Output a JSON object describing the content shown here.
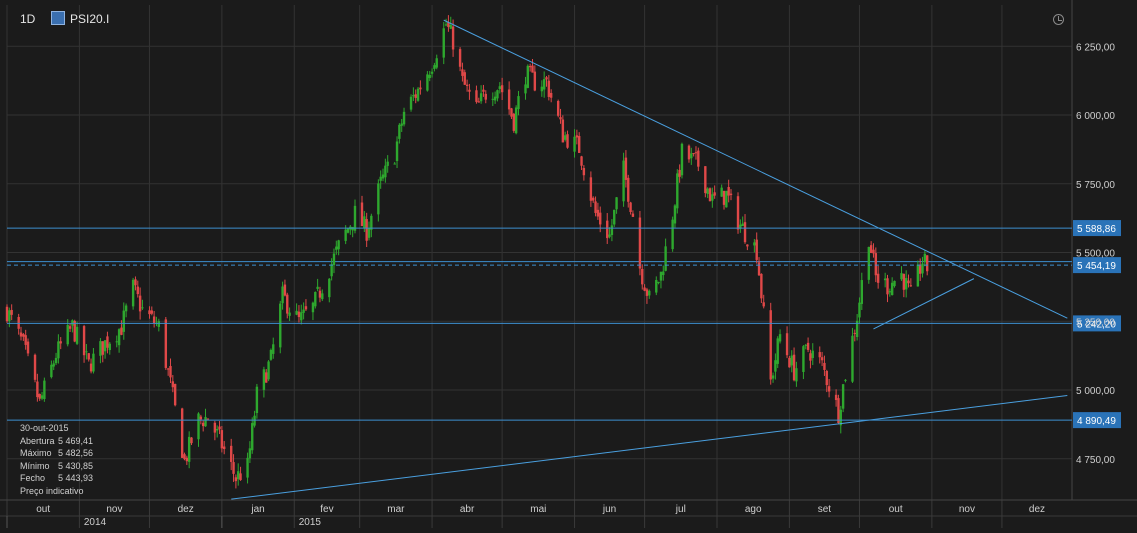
{
  "header": {
    "interval": "1D",
    "symbol": "PSI20.I"
  },
  "info": {
    "date": "30-out-2015",
    "rows": [
      {
        "label": "Abertura",
        "value": "5 469,41"
      },
      {
        "label": "Máximo",
        "value": "5 482,56"
      },
      {
        "label": "Mínimo",
        "value": "5 430,85"
      },
      {
        "label": "Fecho",
        "value": "5 443,93"
      }
    ],
    "note": "Preço indicativo"
  },
  "chart_data": {
    "type": "candlestick",
    "ylim": [
      4600,
      6400
    ],
    "y_ticks": [
      {
        "value": 4750,
        "label": "4 750,00"
      },
      {
        "value": 5000,
        "label": "5 000,00"
      },
      {
        "value": 5250,
        "label": "5 250,00"
      },
      {
        "value": 5500,
        "label": "5 500,00"
      },
      {
        "value": 5750,
        "label": "5 750,00"
      },
      {
        "value": 6000,
        "label": "6 000,00"
      },
      {
        "value": 6250,
        "label": "6 250,00"
      }
    ],
    "x_start": "2014-10-01",
    "x_end": "2015-12-31",
    "months": [
      {
        "date": "2014-10-01",
        "label": "out"
      },
      {
        "date": "2014-11-01",
        "label": "nov"
      },
      {
        "date": "2014-12-01",
        "label": "dez"
      },
      {
        "date": "2015-01-01",
        "label": "jan"
      },
      {
        "date": "2015-02-01",
        "label": "fev"
      },
      {
        "date": "2015-03-01",
        "label": "mar"
      },
      {
        "date": "2015-04-01",
        "label": "abr"
      },
      {
        "date": "2015-05-01",
        "label": "mai"
      },
      {
        "date": "2015-06-01",
        "label": "jun"
      },
      {
        "date": "2015-07-01",
        "label": "jul"
      },
      {
        "date": "2015-08-01",
        "label": "ago"
      },
      {
        "date": "2015-09-01",
        "label": "set"
      },
      {
        "date": "2015-10-01",
        "label": "out"
      },
      {
        "date": "2015-11-01",
        "label": "nov"
      },
      {
        "date": "2015-12-01",
        "label": "dez"
      }
    ],
    "years": [
      {
        "date": "2014-10-01",
        "label": "2014"
      },
      {
        "date": "2015-01-01",
        "label": "2015"
      }
    ],
    "price_levels": [
      {
        "value": 5588.86,
        "label": "5 588,86"
      },
      {
        "value": 5454.19,
        "label": "5 454,19",
        "style": "dashed"
      },
      {
        "value": 5242.2,
        "label": "5 242,20"
      },
      {
        "value": 4890.49,
        "label": "4 890,49"
      }
    ],
    "unlabeled_levels": [
      5467
    ],
    "trendlines": [
      {
        "from": {
          "date": "2015-04-06",
          "value": 6345
        },
        "to": {
          "date": "2015-12-29",
          "value": 5261
        }
      },
      {
        "from": {
          "date": "2015-01-05",
          "value": 4603
        },
        "to": {
          "date": "2015-12-29",
          "value": 4980
        }
      },
      {
        "from": {
          "date": "2015-10-07",
          "value": 5222
        },
        "to": {
          "date": "2015-11-19",
          "value": 5405
        }
      }
    ],
    "close_anchors": [
      [
        "2014-10-01",
        5290
      ],
      [
        "2014-10-08",
        5160
      ],
      [
        "2014-10-15",
        4950
      ],
      [
        "2014-10-22",
        5130
      ],
      [
        "2014-10-29",
        5230
      ],
      [
        "2014-11-05",
        5090
      ],
      [
        "2014-11-12",
        5170
      ],
      [
        "2014-11-19",
        5230
      ],
      [
        "2014-11-24",
        5370
      ],
      [
        "2014-11-28",
        5290
      ],
      [
        "2014-12-05",
        5230
      ],
      [
        "2014-12-10",
        5020
      ],
      [
        "2014-12-16",
        4740
      ],
      [
        "2014-12-22",
        4890
      ],
      [
        "2014-12-26",
        4900
      ],
      [
        "2014-12-31",
        4820
      ],
      [
        "2015-01-07",
        4680
      ],
      [
        "2015-01-12",
        4720
      ],
      [
        "2015-01-16",
        4980
      ],
      [
        "2015-01-22",
        5110
      ],
      [
        "2015-01-27",
        5340
      ],
      [
        "2015-02-03",
        5250
      ],
      [
        "2015-02-09",
        5300
      ],
      [
        "2015-02-13",
        5380
      ],
      [
        "2015-02-20",
        5520
      ],
      [
        "2015-02-27",
        5640
      ],
      [
        "2015-03-04",
        5580
      ],
      [
        "2015-03-10",
        5750
      ],
      [
        "2015-03-16",
        5860
      ],
      [
        "2015-03-20",
        6010
      ],
      [
        "2015-03-26",
        6090
      ],
      [
        "2015-04-01",
        6190
      ],
      [
        "2015-04-07",
        6330
      ],
      [
        "2015-04-10",
        6270
      ],
      [
        "2015-04-14",
        6120
      ],
      [
        "2015-04-20",
        6020
      ],
      [
        "2015-04-24",
        6080
      ],
      [
        "2015-04-30",
        6110
      ],
      [
        "2015-05-06",
        5980
      ],
      [
        "2015-05-11",
        6150
      ],
      [
        "2015-05-15",
        6120
      ],
      [
        "2015-05-20",
        6120
      ],
      [
        "2015-05-27",
        5930
      ],
      [
        "2015-06-03",
        5880
      ],
      [
        "2015-06-10",
        5640
      ],
      [
        "2015-06-16",
        5560
      ],
      [
        "2015-06-22",
        5800
      ],
      [
        "2015-06-26",
        5640
      ],
      [
        "2015-06-29",
        5450
      ],
      [
        "2015-07-03",
        5330
      ],
      [
        "2015-07-08",
        5420
      ],
      [
        "2015-07-13",
        5640
      ],
      [
        "2015-07-17",
        5860
      ],
      [
        "2015-07-24",
        5820
      ],
      [
        "2015-07-30",
        5690
      ],
      [
        "2015-08-05",
        5710
      ],
      [
        "2015-08-11",
        5600
      ],
      [
        "2015-08-18",
        5510
      ],
      [
        "2015-08-24",
        5030
      ],
      [
        "2015-08-28",
        5200
      ],
      [
        "2015-09-03",
        5070
      ],
      [
        "2015-09-09",
        5150
      ],
      [
        "2015-09-15",
        5090
      ],
      [
        "2015-09-22",
        4920
      ],
      [
        "2015-09-25",
        5060
      ],
      [
        "2015-09-30",
        5270
      ],
      [
        "2015-10-05",
        5560
      ],
      [
        "2015-10-08",
        5410
      ],
      [
        "2015-10-13",
        5380
      ],
      [
        "2015-10-19",
        5420
      ],
      [
        "2015-10-23",
        5340
      ],
      [
        "2015-10-28",
        5470
      ],
      [
        "2015-10-30",
        5444
      ]
    ]
  }
}
